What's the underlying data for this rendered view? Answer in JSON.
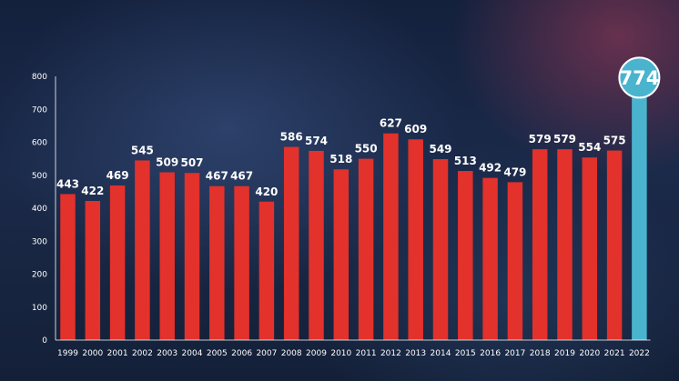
{
  "chart_data": {
    "type": "bar",
    "categories": [
      "1999",
      "2000",
      "2001",
      "2002",
      "2003",
      "2004",
      "2005",
      "2006",
      "2007",
      "2008",
      "2009",
      "2010",
      "2011",
      "2012",
      "2013",
      "2014",
      "2015",
      "2016",
      "2017",
      "2018",
      "2019",
      "2020",
      "2021",
      "2022"
    ],
    "values": [
      443,
      422,
      469,
      545,
      509,
      507,
      467,
      467,
      420,
      586,
      574,
      518,
      550,
      627,
      609,
      549,
      513,
      492,
      479,
      579,
      579,
      554,
      575,
      774
    ],
    "value_labels": [
      "443",
      "422",
      "469",
      "545",
      "509",
      "507",
      "467",
      "467",
      "420",
      "586",
      "574",
      "518",
      "550",
      "627",
      "609",
      "549",
      "513",
      "492",
      "479",
      "579",
      "579",
      "554",
      "575",
      "774"
    ],
    "ylim": [
      0,
      800
    ],
    "yticks": [
      0,
      100,
      200,
      300,
      400,
      500,
      600,
      700,
      800
    ],
    "ytick_labels": [
      "0",
      "100",
      "200",
      "300",
      "400",
      "500",
      "600",
      "700",
      "800"
    ],
    "grid": false,
    "title": "",
    "xlabel": "",
    "ylabel": "",
    "highlight_index": 23,
    "colors": {
      "bar": "#e3312b",
      "highlight_bar": "#4ab4cf",
      "highlight_circle": "#4ab4cf",
      "highlight_ring": "#ffffff",
      "axis": "#ffffff"
    }
  }
}
